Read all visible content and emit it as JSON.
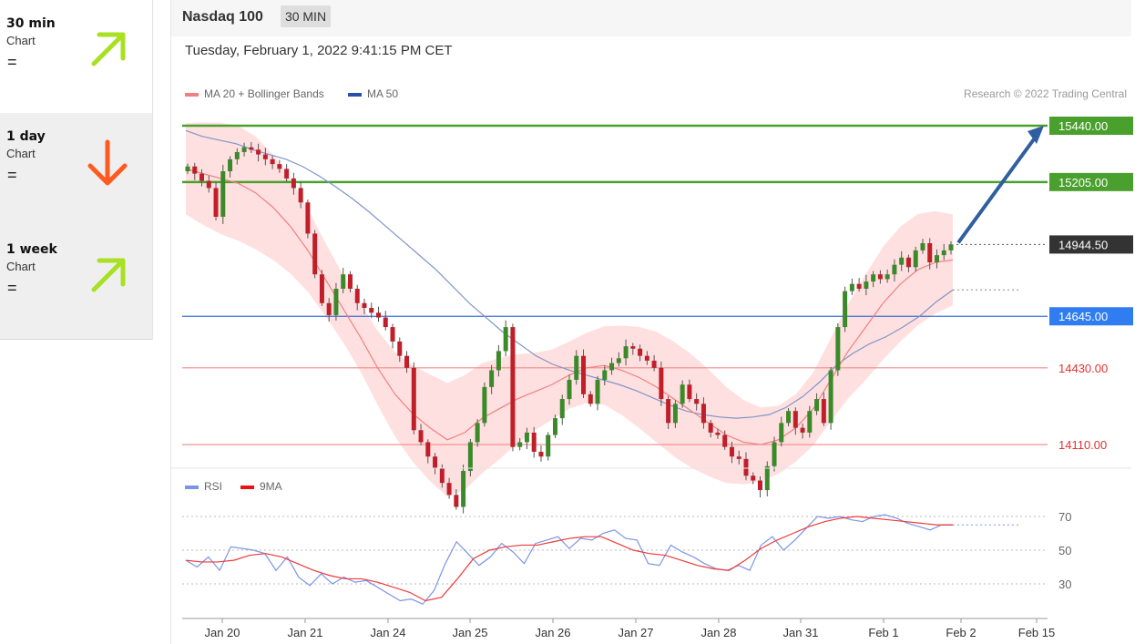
{
  "sidebar": {
    "items": [
      {
        "name": "30 min",
        "sub": "Chart",
        "eq": "=",
        "direction": "up",
        "icon": "arrow-up-right-icon",
        "color": "#a8e022"
      },
      {
        "name": "1 day",
        "sub": "Chart",
        "eq": "=",
        "direction": "down",
        "icon": "arrow-down-icon",
        "color": "#ff5a1f"
      },
      {
        "name": "1 week",
        "sub": "Chart",
        "eq": "=",
        "direction": "up",
        "icon": "arrow-up-right-icon",
        "color": "#a8e022"
      }
    ]
  },
  "header": {
    "title": "Nasdaq 100",
    "timeframe": "30 MIN",
    "datetime": "Tuesday, February 1, 2022 9:41:15 PM CET",
    "legend_main": [
      "MA 20 + Bollinger Bands",
      "MA 50"
    ],
    "research": "Research © 2022 Trading Central",
    "legend_rsi": [
      "RSI",
      "9MA"
    ]
  },
  "chart_data": [
    {
      "type": "candlestick",
      "colors": {
        "up": "#3a8a2a",
        "down": "#c01f2a",
        "ma20": "#f08080",
        "ma50": "#7f95c8",
        "band": "#ffd6d6",
        "resistance": "#4aa02c",
        "pivot": "#3a6fd8",
        "support": "#f08a8a",
        "last": "#333333"
      },
      "x_labels": [
        "Jan 20",
        "Jan 21",
        "Jan 24",
        "Jan 25",
        "Jan 26",
        "Jan 27",
        "Jan 28",
        "Jan 31",
        "Feb 1",
        "Feb 2",
        "Feb 15"
      ],
      "levels": [
        {
          "value": 15440.0,
          "label": "15440.00",
          "kind": "resistance"
        },
        {
          "value": 15205.0,
          "label": "15205.00",
          "kind": "resistance"
        },
        {
          "value": 14944.5,
          "label": "14944.50",
          "kind": "last"
        },
        {
          "value": 14645.0,
          "label": "14645.00",
          "kind": "pivot"
        },
        {
          "value": 14430.0,
          "label": "14430.00",
          "kind": "support"
        },
        {
          "value": 14110.0,
          "label": "14110.00",
          "kind": "support"
        }
      ],
      "target": {
        "from": 14944.5,
        "to": 15440.0
      },
      "closes": [
        15270,
        15240,
        15210,
        15180,
        15060,
        15250,
        15300,
        15330,
        15350,
        15340,
        15320,
        15300,
        15280,
        15260,
        15220,
        15180,
        15120,
        14990,
        14820,
        14700,
        14650,
        14760,
        14820,
        14760,
        14700,
        14680,
        14660,
        14640,
        14600,
        14540,
        14480,
        14430,
        14170,
        14120,
        14060,
        14010,
        13950,
        13900,
        13850,
        14000,
        14120,
        14200,
        14350,
        14420,
        14500,
        14600,
        14100,
        14120,
        14160,
        14080,
        14060,
        14150,
        14220,
        14300,
        14380,
        14480,
        14320,
        14280,
        14380,
        14420,
        14450,
        14470,
        14520,
        14510,
        14480,
        14460,
        14430,
        14300,
        14200,
        14280,
        14360,
        14300,
        14280,
        14200,
        14160,
        14150,
        14100,
        14060,
        14050,
        13980,
        13960,
        13920,
        14020,
        14120,
        14200,
        14250,
        14180,
        14160,
        14250,
        14300,
        14200,
        14420,
        14600,
        14750,
        14780,
        14760,
        14790,
        14820,
        14800,
        14820,
        14860,
        14890,
        14850,
        14920,
        14950,
        14870,
        14900,
        14920,
        14945
      ],
      "ma50": [
        15420,
        15395,
        15380,
        15365,
        15340,
        15320,
        15300,
        15270,
        15230,
        15185,
        15135,
        15080,
        15020,
        14960,
        14900,
        14840,
        14770,
        14700,
        14640,
        14580,
        14530,
        14480,
        14445,
        14420,
        14400,
        14380,
        14360,
        14335,
        14305,
        14275,
        14250,
        14235,
        14225,
        14220,
        14225,
        14235,
        14265,
        14310,
        14370,
        14440,
        14490,
        14530,
        14560,
        14600,
        14645,
        14705,
        14755
      ],
      "ma20": [
        15260,
        15240,
        15220,
        15200,
        15160,
        15100,
        15020,
        14920,
        14800,
        14680,
        14560,
        14430,
        14320,
        14240,
        14180,
        14130,
        14160,
        14220,
        14260,
        14300,
        14330,
        14360,
        14400,
        14430,
        14440,
        14420,
        14390,
        14350,
        14300,
        14250,
        14200,
        14150,
        14120,
        14110,
        14130,
        14180,
        14260,
        14380,
        14500,
        14600,
        14700,
        14780,
        14840,
        14870,
        14880
      ]
    },
    {
      "type": "line",
      "title": "RSI",
      "series": [
        {
          "name": "RSI",
          "color": "#7b95e6",
          "values": [
            44,
            40,
            46,
            38,
            52,
            51,
            50,
            48,
            38,
            46,
            34,
            29,
            36,
            30,
            34,
            31,
            32,
            28,
            24,
            20,
            21,
            18,
            26,
            42,
            55,
            48,
            41,
            46,
            54,
            49,
            42,
            54,
            56,
            58,
            51,
            57,
            56,
            60,
            62,
            57,
            56,
            42,
            41,
            53,
            49,
            46,
            42,
            39,
            38,
            41,
            38,
            53,
            58,
            50,
            56,
            63,
            70,
            69,
            70,
            68,
            67,
            70,
            71,
            69,
            66,
            64,
            62,
            65,
            65
          ]
        },
        {
          "name": "9MA",
          "color": "#ee3a3a",
          "values": [
            44,
            43,
            43,
            44,
            47,
            48,
            46,
            42,
            38,
            35,
            33,
            33,
            31,
            28,
            25,
            20,
            22,
            33,
            45,
            50,
            52,
            53,
            53,
            55,
            57,
            58,
            58,
            54,
            50,
            48,
            47,
            44,
            41,
            39,
            38,
            44,
            51,
            56,
            60,
            64,
            67,
            69,
            70,
            69,
            68,
            67,
            66,
            65,
            65
          ]
        }
      ],
      "y_ticks": [
        70,
        50,
        30
      ]
    }
  ]
}
